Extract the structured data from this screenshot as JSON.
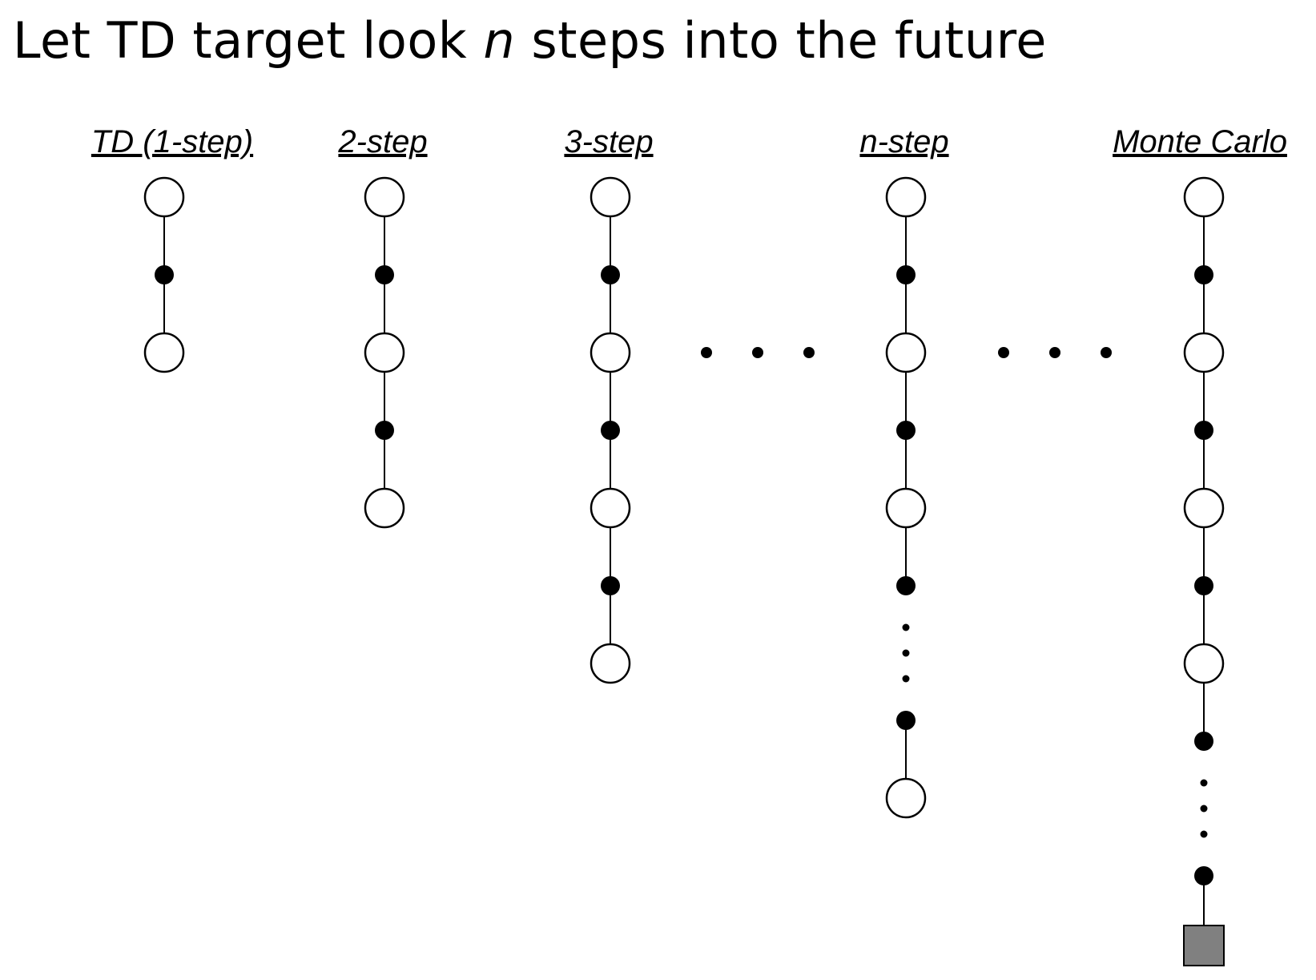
{
  "title": {
    "prefix": "Let TD target look ",
    "variable": "n",
    "suffix": " steps into the future"
  },
  "diagram": {
    "columns": [
      {
        "label": "TD (1-step)",
        "sequence": [
          "state",
          "action",
          "state"
        ]
      },
      {
        "label": "2-step",
        "sequence": [
          "state",
          "action",
          "state",
          "action",
          "state"
        ]
      },
      {
        "label": "3-step",
        "sequence": [
          "state",
          "action",
          "state",
          "action",
          "state",
          "action",
          "state"
        ]
      },
      {
        "label": "n-step",
        "sequence": [
          "state",
          "action",
          "state",
          "action",
          "state",
          "action",
          "ellipsis",
          "action",
          "state"
        ]
      },
      {
        "label": "Monte Carlo",
        "sequence": [
          "state",
          "action",
          "state",
          "action",
          "state",
          "action",
          "state",
          "action",
          "ellipsis",
          "action",
          "terminal"
        ]
      }
    ],
    "colors": {
      "state_fill": "#ffffff",
      "action_fill": "#000000",
      "terminal_fill": "#808080",
      "line": "#000000"
    }
  }
}
